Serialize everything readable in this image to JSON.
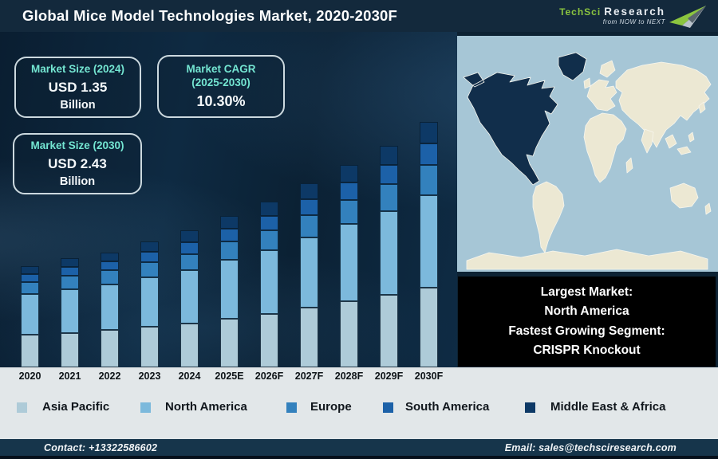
{
  "header": {
    "title": "Global Mice Model Technologies Market, 2020-2030F",
    "logo": {
      "brand_primary": "TechSci",
      "brand_secondary": "Research",
      "tagline": "from NOW to NEXT"
    }
  },
  "info_cards": {
    "market_size_2024": {
      "title": "Market Size (2024)",
      "value": "USD 1.35",
      "unit": "Billion"
    },
    "market_cagr": {
      "title_line1": "Market CAGR",
      "title_line2": "(2025-2030)",
      "value": "10.30%"
    },
    "market_size_2030": {
      "title": "Market Size (2030)",
      "value": "USD 2.43",
      "unit": "Billion"
    }
  },
  "chart_data": {
    "type": "bar",
    "stacked": true,
    "title": "Global Mice Model Technologies Market, 2020-2030F",
    "unit": "USD Billion",
    "xlabel": "",
    "ylabel": "",
    "grid": false,
    "legend_position": "bottom",
    "categories": [
      "2020",
      "2021",
      "2022",
      "2023",
      "2024",
      "2025E",
      "2026F",
      "2027F",
      "2028F",
      "2029F",
      "2030F"
    ],
    "series": [
      {
        "name": "Asia Pacific",
        "color": "#aecbd8",
        "values": [
          0.32,
          0.34,
          0.37,
          0.4,
          0.43,
          0.48,
          0.53,
          0.59,
          0.65,
          0.72,
          0.79
        ]
      },
      {
        "name": "North America",
        "color": "#7cb9dc",
        "values": [
          0.4,
          0.43,
          0.45,
          0.49,
          0.53,
          0.58,
          0.63,
          0.69,
          0.76,
          0.83,
          0.91
        ]
      },
      {
        "name": "Europe",
        "color": "#3381bd",
        "values": [
          0.12,
          0.13,
          0.14,
          0.15,
          0.16,
          0.18,
          0.2,
          0.22,
          0.24,
          0.27,
          0.3
        ]
      },
      {
        "name": "South America",
        "color": "#1c61a8",
        "values": [
          0.08,
          0.085,
          0.09,
          0.1,
          0.115,
          0.125,
          0.14,
          0.155,
          0.175,
          0.19,
          0.215
        ]
      },
      {
        "name": "Middle East & Africa",
        "color": "#0d3966",
        "values": [
          0.08,
          0.085,
          0.09,
          0.1,
          0.115,
          0.125,
          0.14,
          0.155,
          0.175,
          0.19,
          0.215
        ]
      }
    ],
    "totals": [
      1.0,
      1.07,
      1.14,
      1.24,
      1.35,
      1.49,
      1.64,
      1.81,
      2.0,
      2.2,
      2.43
    ],
    "anchors": {
      "market_size_2024_usd_billion": 1.35,
      "market_size_2030_usd_billion": 2.43,
      "cagr_2025_2030_percent": 10.3
    }
  },
  "map": {
    "highlight_region": "North America",
    "ocean_color": "#a6c6d6",
    "land_color": "#ece8d3",
    "highlight_color": "#112e4b"
  },
  "callout": {
    "lines": [
      "Largest Market:",
      "North America",
      "Fastest Growing Segment:",
      "CRISPR Knockout"
    ]
  },
  "footer": {
    "contact": "Contact: +13322586602",
    "email": "Email: sales@techsciresearch.com"
  },
  "colors": {
    "accent_teal": "#74e6d2",
    "header_bg": "#13293c",
    "footer_bg": "#16354b",
    "panel_light": "#e2e7e9",
    "logo_green": "#8bc53f"
  }
}
